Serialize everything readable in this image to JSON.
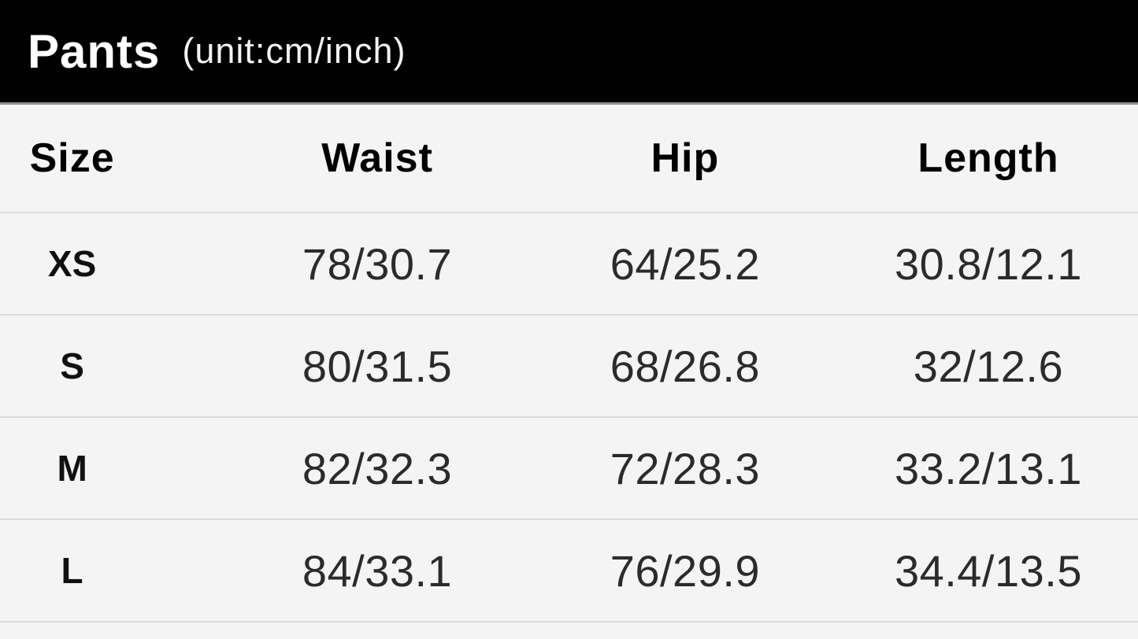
{
  "header": {
    "title": "Pants",
    "unit_label": "(unit:cm/inch)"
  },
  "chart_data": {
    "type": "table",
    "title": "Pants (unit:cm/inch)",
    "columns": [
      "Size",
      "Waist",
      "Hip",
      "Length"
    ],
    "rows": [
      [
        "XS",
        "78/30.7",
        "64/25.2",
        "30.8/12.1"
      ],
      [
        "S",
        "80/31.5",
        "68/26.8",
        "32/12.6"
      ],
      [
        "M",
        "82/32.3",
        "72/28.3",
        "33.2/13.1"
      ],
      [
        "L",
        "84/33.1",
        "76/29.9",
        "34.4/13.5"
      ]
    ]
  },
  "colors": {
    "title_bar_bg": "#000000",
    "title_text": "#ffffff",
    "table_bg": "#f4f4f4",
    "divider": "#dcdcdc",
    "header_text": "#000000",
    "value_text": "#2b2b2b"
  }
}
